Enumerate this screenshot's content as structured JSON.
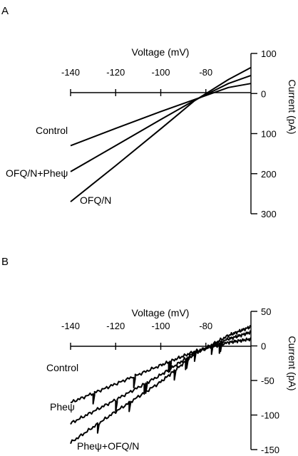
{
  "chart_data": [
    {
      "type": "line",
      "panel_label": "A",
      "xlabel": "Voltage (mV)",
      "ylabel": "Current (pA)",
      "xlim": [
        -140,
        -60
      ],
      "ylim": [
        -300,
        100
      ],
      "y_inverted_labels": true,
      "x_ticks": [
        -140,
        -120,
        -100,
        -80
      ],
      "y_ticks": [
        {
          "value": 100,
          "label": "100"
        },
        {
          "value": 0,
          "label": "0"
        },
        {
          "value": -100,
          "label": "100"
        },
        {
          "value": -200,
          "label": "200"
        },
        {
          "value": -300,
          "label": "300"
        }
      ],
      "grid": false,
      "series": [
        {
          "name": "Control",
          "x": [
            -140,
            -120,
            -100,
            -85,
            -70,
            -60
          ],
          "y": [
            -130,
            -87,
            -45,
            -15,
            15,
            25
          ]
        },
        {
          "name": "OFQ/N+Pheψ",
          "x": [
            -140,
            -120,
            -100,
            -85,
            -70,
            -60
          ],
          "y": [
            -195,
            -130,
            -65,
            -17,
            25,
            45
          ]
        },
        {
          "name": "OFQ/N",
          "x": [
            -140,
            -120,
            -100,
            -85,
            -70,
            -60
          ],
          "y": [
            -270,
            -180,
            -88,
            -18,
            35,
            65
          ]
        }
      ]
    },
    {
      "type": "line",
      "panel_label": "B",
      "xlabel": "Voltage (mV)",
      "ylabel": "Current (pA)",
      "xlim": [
        -140,
        -60
      ],
      "ylim": [
        -150,
        50
      ],
      "x_ticks": [
        -140,
        -120,
        -100,
        -80
      ],
      "y_ticks": [
        {
          "value": 50,
          "label": "50"
        },
        {
          "value": 0,
          "label": "0"
        },
        {
          "value": -50,
          "label": "-50"
        },
        {
          "value": -100,
          "label": "-100"
        },
        {
          "value": -150,
          "label": "-150"
        }
      ],
      "grid": false,
      "series": [
        {
          "name": "Control",
          "x": [
            -140,
            -120,
            -100,
            -85,
            -70,
            -60
          ],
          "y": [
            -82,
            -55,
            -28,
            -8,
            5,
            10
          ]
        },
        {
          "name": "Pheψ",
          "x": [
            -140,
            -120,
            -100,
            -85,
            -70,
            -60
          ],
          "y": [
            -112,
            -78,
            -42,
            -10,
            10,
            20
          ]
        },
        {
          "name": "Pheψ+OFQ/N",
          "x": [
            -140,
            -120,
            -100,
            -85,
            -70,
            -60
          ],
          "y": [
            -140,
            -95,
            -52,
            -12,
            15,
            28
          ]
        }
      ]
    }
  ]
}
